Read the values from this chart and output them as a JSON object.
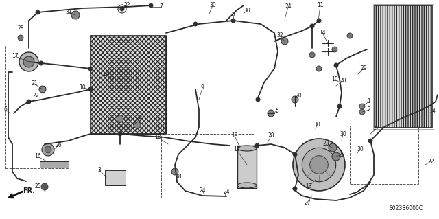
{
  "background_color": "#ffffff",
  "diagram_code": "S023B6000C",
  "line_color": "#2a2a2a",
  "text_color": "#1a1a1a",
  "gray_fill": "#c8c8c8",
  "dark_fill": "#555555",
  "hatch_color": "#888888"
}
